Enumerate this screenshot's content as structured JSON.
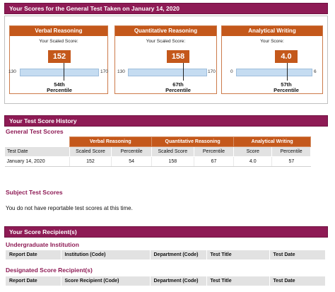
{
  "scores_header": {
    "title": "Your Scores for the General Test Taken on January 14, 2020"
  },
  "score_cards": [
    {
      "title": "Verbal Reasoning",
      "scaled_label": "Your Scaled Score:",
      "score": "152",
      "min": "130",
      "max": "170",
      "score_value": 152,
      "min_value": 130,
      "max_value": 170,
      "percentile": "54th",
      "percentile_label": "Percentile"
    },
    {
      "title": "Quantitative Reasoning",
      "scaled_label": "Your Scaled Score:",
      "score": "158",
      "min": "130",
      "max": "170",
      "score_value": 158,
      "min_value": 130,
      "max_value": 170,
      "percentile": "67th",
      "percentile_label": "Percentile"
    },
    {
      "title": "Analytical Writing",
      "scaled_label": "Your Score:",
      "score": "4.0",
      "min": "0",
      "max": "6",
      "score_value": 4.0,
      "min_value": 0,
      "max_value": 6,
      "percentile": "57th",
      "percentile_label": "Percentile"
    }
  ],
  "history": {
    "bar_title": "Your Test Score History",
    "section_title": "General Test Scores",
    "groups": [
      "Verbal Reasoning",
      "Quantitative Reasoning",
      "Analytical Writing"
    ],
    "columns": [
      "Test Date",
      "Scaled Score",
      "Percentile",
      "Scaled Score",
      "Percentile",
      "Score",
      "Percentile"
    ],
    "rows": [
      [
        "January 14, 2020",
        "152",
        "54",
        "158",
        "67",
        "4.0",
        "57"
      ]
    ]
  },
  "subject": {
    "title": "Subject Test Scores",
    "message": "You do not have reportable test scores at this time."
  },
  "recipients": {
    "bar_title": "Your Score Recipient(s)",
    "undergrad": {
      "title": "Undergraduate Institution",
      "columns": [
        "Report Date",
        "Institution (Code)",
        "Department (Code)",
        "Test Title",
        "Test Date"
      ]
    },
    "designated": {
      "title": "Designated Score Recipient(s)",
      "columns": [
        "Report Date",
        "Score Recipient (Code)",
        "Department (Code)",
        "Test Title",
        "Test Date"
      ]
    }
  }
}
